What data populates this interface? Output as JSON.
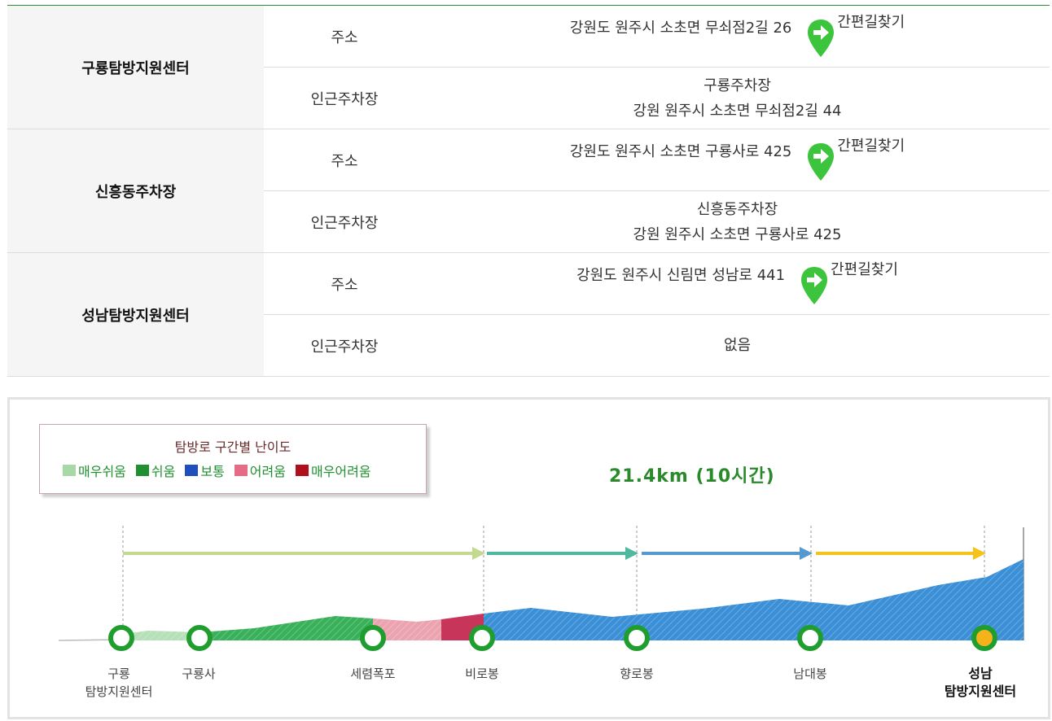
{
  "info": {
    "groups": [
      {
        "name": "구룡탐방지원센터",
        "address_label": "주소",
        "address": "강원도 원주시 소초면 무쇠점2길 26",
        "directions_label": "간편길찾기",
        "parking_label": "인근주차장",
        "parking_name": "구룡주차장",
        "parking_address": "강원 원주시 소초면 무쇠점2길 44"
      },
      {
        "name": "신흥동주차장",
        "address_label": "주소",
        "address": "강원도 원주시 소초면 구룡사로 425",
        "directions_label": "간편길찾기",
        "parking_label": "인근주차장",
        "parking_name": "신흥동주차장",
        "parking_address": "강원 원주시 소초면 구룡사로 425"
      },
      {
        "name": "성남탐방지원센터",
        "address_label": "주소",
        "address": "강원도 원주시 신림면 성남로 441",
        "directions_label": "간편길찾기",
        "parking_label": "인근주차장",
        "parking_value": "없음"
      }
    ],
    "pin_icon": "map-pin-arrow-icon",
    "pin_color": "#3cc43c"
  },
  "trail": {
    "legend": {
      "title": "탐방로 구간별 난이도",
      "items": [
        {
          "label": "매우쉬움",
          "color": "#a6d9a6"
        },
        {
          "label": "쉬움",
          "color": "#1f8f2f"
        },
        {
          "label": "보통",
          "color": "#1f4fbf"
        },
        {
          "label": "어려움",
          "color": "#e86b85"
        },
        {
          "label": "매우어려움",
          "color": "#b0101c"
        }
      ]
    },
    "distance": "21.4km (10시간)",
    "stops": [
      {
        "line1": "구룡",
        "line2": "탐방지원센터"
      },
      {
        "line1": "구룡사"
      },
      {
        "line1": "세렴폭포"
      },
      {
        "line1": "비로봉"
      },
      {
        "line1": "향로봉"
      },
      {
        "line1": "남대봉"
      },
      {
        "line1": "성남",
        "line2": "탐방지원센터"
      }
    ],
    "arrow_colors": [
      "#c3d98f",
      "#4fb9a0",
      "#5599d0",
      "#f5c21a"
    ]
  }
}
